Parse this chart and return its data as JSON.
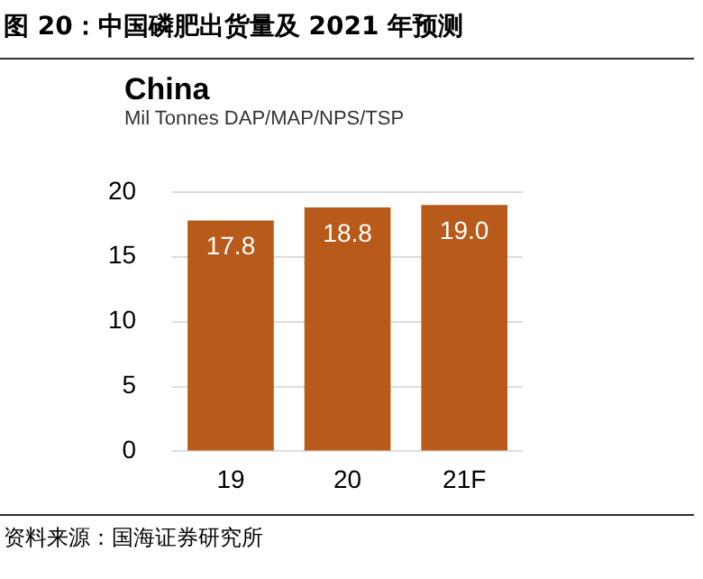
{
  "chart_data": {
    "type": "bar",
    "title": "图 20：中国磷肥出货量及 2021 年预测",
    "subtitle": "China",
    "ylabel": "Mil Tonnes DAP/MAP/NPS/TSP",
    "categories": [
      "19",
      "20",
      "21F"
    ],
    "values": [
      17.8,
      18.8,
      19.0
    ],
    "value_labels": [
      "17.8",
      "18.8",
      "19.0"
    ],
    "color": "#b85a1a",
    "ylim": [
      0,
      20
    ],
    "yticks": [
      0,
      5,
      10,
      15,
      20
    ],
    "grid": "y",
    "annotations": [
      "资料来源：国海证券研究所"
    ]
  }
}
